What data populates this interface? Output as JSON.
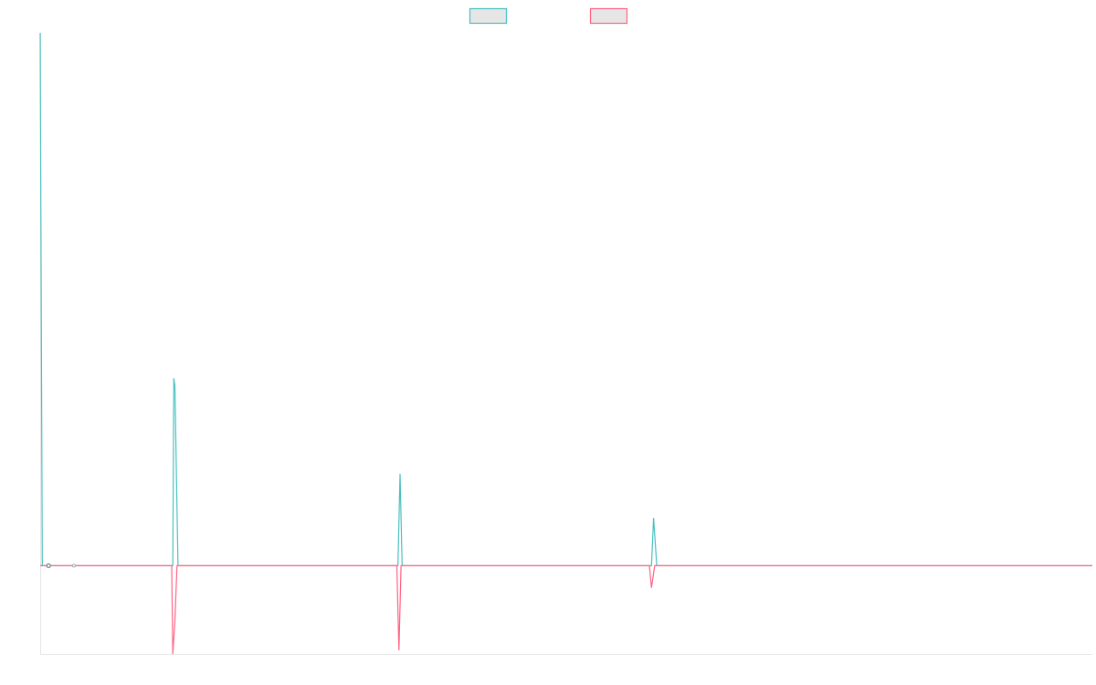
{
  "chart_data": {
    "type": "line",
    "title": "",
    "xlabel": "",
    "ylabel": "",
    "legend_position": "top-center",
    "grid": false,
    "xlim": [
      0,
      1000
    ],
    "ylim": [
      -0.24,
      1.45
    ],
    "series": [
      {
        "name": "",
        "color": "#4bc0c0",
        "fill": "#e6e6e6",
        "points": [
          [
            0,
            1.45
          ],
          [
            2,
            0.0
          ],
          [
            8,
            0.0
          ],
          [
            32,
            0.0
          ],
          [
            126,
            0.0
          ],
          [
            127,
            0.51
          ],
          [
            128,
            0.49
          ],
          [
            131,
            0.0
          ],
          [
            340,
            0.0
          ],
          [
            342,
            0.25
          ],
          [
            344,
            0.0
          ],
          [
            581,
            0.0
          ],
          [
            583,
            0.13
          ],
          [
            586,
            0.0
          ],
          [
            1000,
            0.0
          ]
        ]
      },
      {
        "name": "",
        "color": "#ff6384",
        "fill": "#e6e6e6",
        "points": [
          [
            0,
            0.0
          ],
          [
            125,
            0.0
          ],
          [
            126,
            -0.24
          ],
          [
            128,
            -0.15
          ],
          [
            130,
            0.0
          ],
          [
            339,
            0.0
          ],
          [
            341,
            -0.23
          ],
          [
            343,
            0.0
          ],
          [
            579,
            0.0
          ],
          [
            581,
            -0.06
          ],
          [
            584,
            0.0
          ],
          [
            1000,
            0.0
          ]
        ]
      }
    ]
  }
}
